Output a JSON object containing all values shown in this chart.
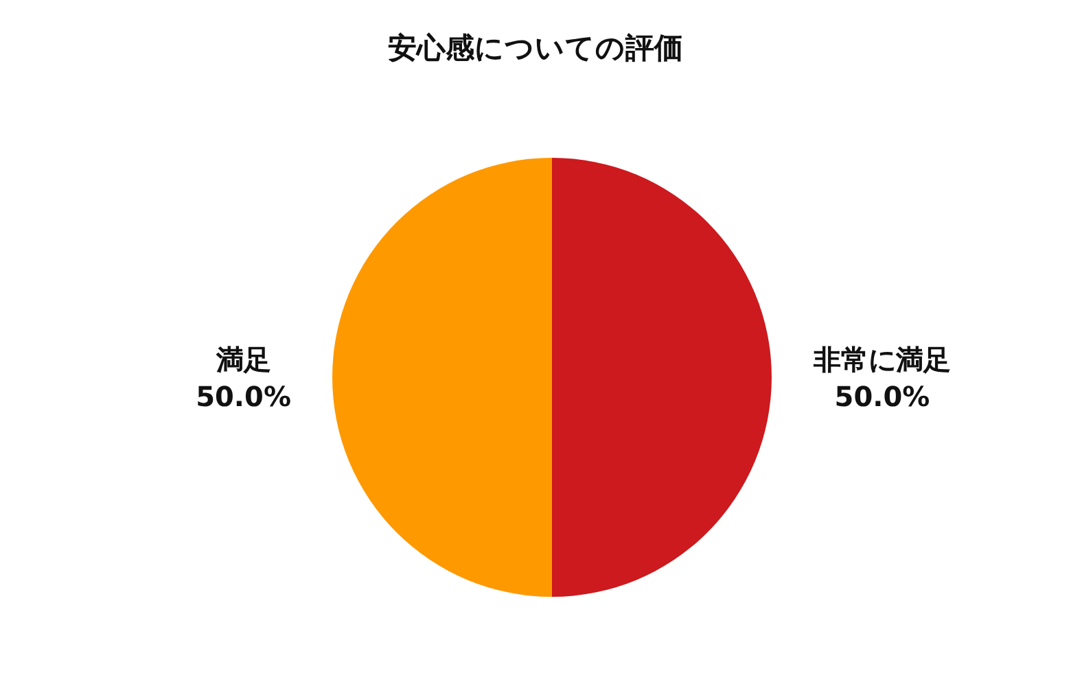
{
  "chart_data": {
    "type": "pie",
    "title": "安心感についての評価",
    "categories": [
      "非常に満足",
      "満足"
    ],
    "values": [
      50,
      50
    ],
    "colors": [
      "#cc1a1e",
      "#ff9900"
    ],
    "value_labels": [
      "50.0%",
      "50.0%"
    ]
  }
}
